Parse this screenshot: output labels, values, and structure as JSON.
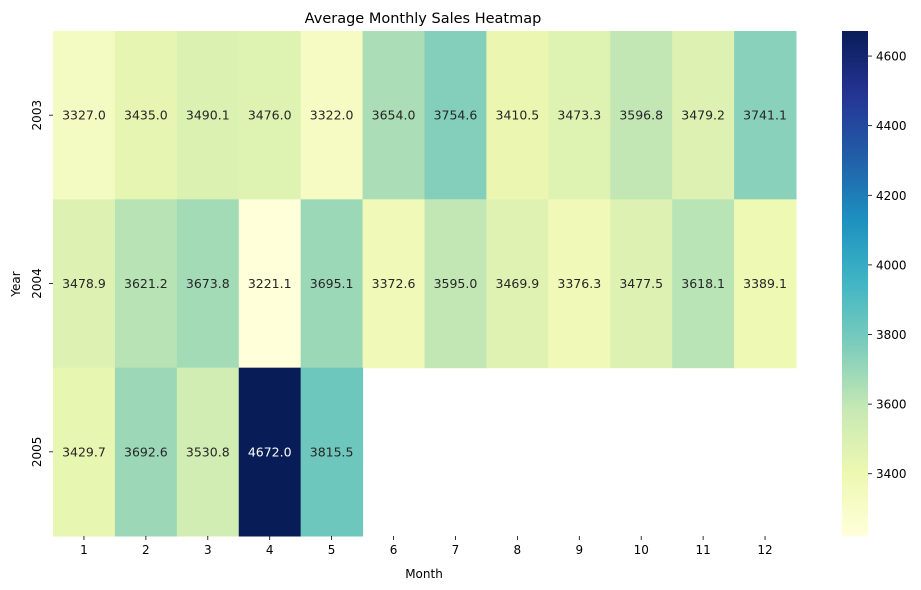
{
  "chart_data": {
    "type": "heatmap",
    "title": "Average Monthly Sales Heatmap",
    "xlabel": "Month",
    "ylabel": "Year",
    "x_categories": [
      "1",
      "2",
      "3",
      "4",
      "5",
      "6",
      "7",
      "8",
      "9",
      "10",
      "11",
      "12"
    ],
    "y_categories": [
      "2003",
      "2004",
      "2005"
    ],
    "values": [
      [
        3327.0,
        3435.0,
        3490.1,
        3476.0,
        3322.0,
        3654.0,
        3754.6,
        3410.5,
        3473.3,
        3596.8,
        3479.2,
        3741.1
      ],
      [
        3478.9,
        3621.2,
        3673.8,
        3221.1,
        3695.1,
        3372.6,
        3595.0,
        3469.9,
        3376.3,
        3477.5,
        3618.1,
        3389.1
      ],
      [
        3429.7,
        3692.6,
        3530.8,
        4672.0,
        3815.5,
        null,
        null,
        null,
        null,
        null,
        null,
        null
      ]
    ],
    "colormap": "YlGnBu",
    "colorbar": {
      "range": [
        3221.1,
        4672.0
      ],
      "ticks": [
        3400,
        3600,
        3800,
        4000,
        4200,
        4400,
        4600
      ]
    },
    "annotations_decimals": 1,
    "grid": false
  }
}
